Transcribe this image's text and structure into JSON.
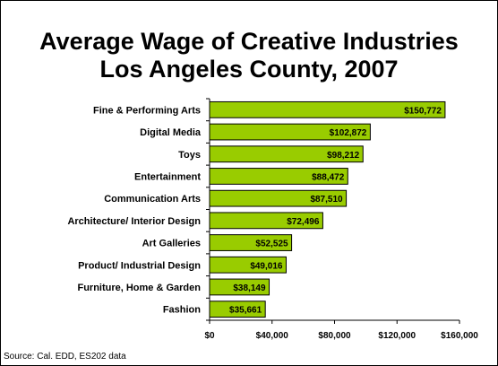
{
  "title_line1": "Average Wage of Creative Industries",
  "title_line2": "Los Angeles County, 2007",
  "source": "Source: Cal. EDD, ES202 data",
  "colors": {
    "bar_fill": "#99cc00",
    "bar_stroke": "#000000",
    "axis": "#000000",
    "text": "#000000"
  },
  "chart_data": {
    "type": "bar",
    "orientation": "horizontal",
    "title": "Average Wage of Creative Industries Los Angeles County, 2007",
    "categories": [
      "Fine & Performing Arts",
      "Digital Media",
      "Toys",
      "Entertainment",
      "Communication Arts",
      "Architecture/ Interior Design",
      "Art Galleries",
      "Product/ Industrial Design",
      "Furniture, Home & Garden",
      "Fashion"
    ],
    "values": [
      150772,
      102872,
      98212,
      88472,
      87510,
      72496,
      52525,
      49016,
      38149,
      35661
    ],
    "value_labels": [
      "$150,772",
      "$102,872",
      "$98,212",
      "$88,472",
      "$87,510",
      "$72,496",
      "$52,525",
      "$49,016",
      "$38,149",
      "$35,661"
    ],
    "xlim": [
      0,
      160000
    ],
    "x_ticks": [
      0,
      40000,
      80000,
      120000,
      160000
    ],
    "x_tick_labels": [
      "$0",
      "$40,000",
      "$80,000",
      "$120,000",
      "$160,000"
    ],
    "grid": false,
    "legend": "none",
    "xlabel": "",
    "ylabel": ""
  }
}
